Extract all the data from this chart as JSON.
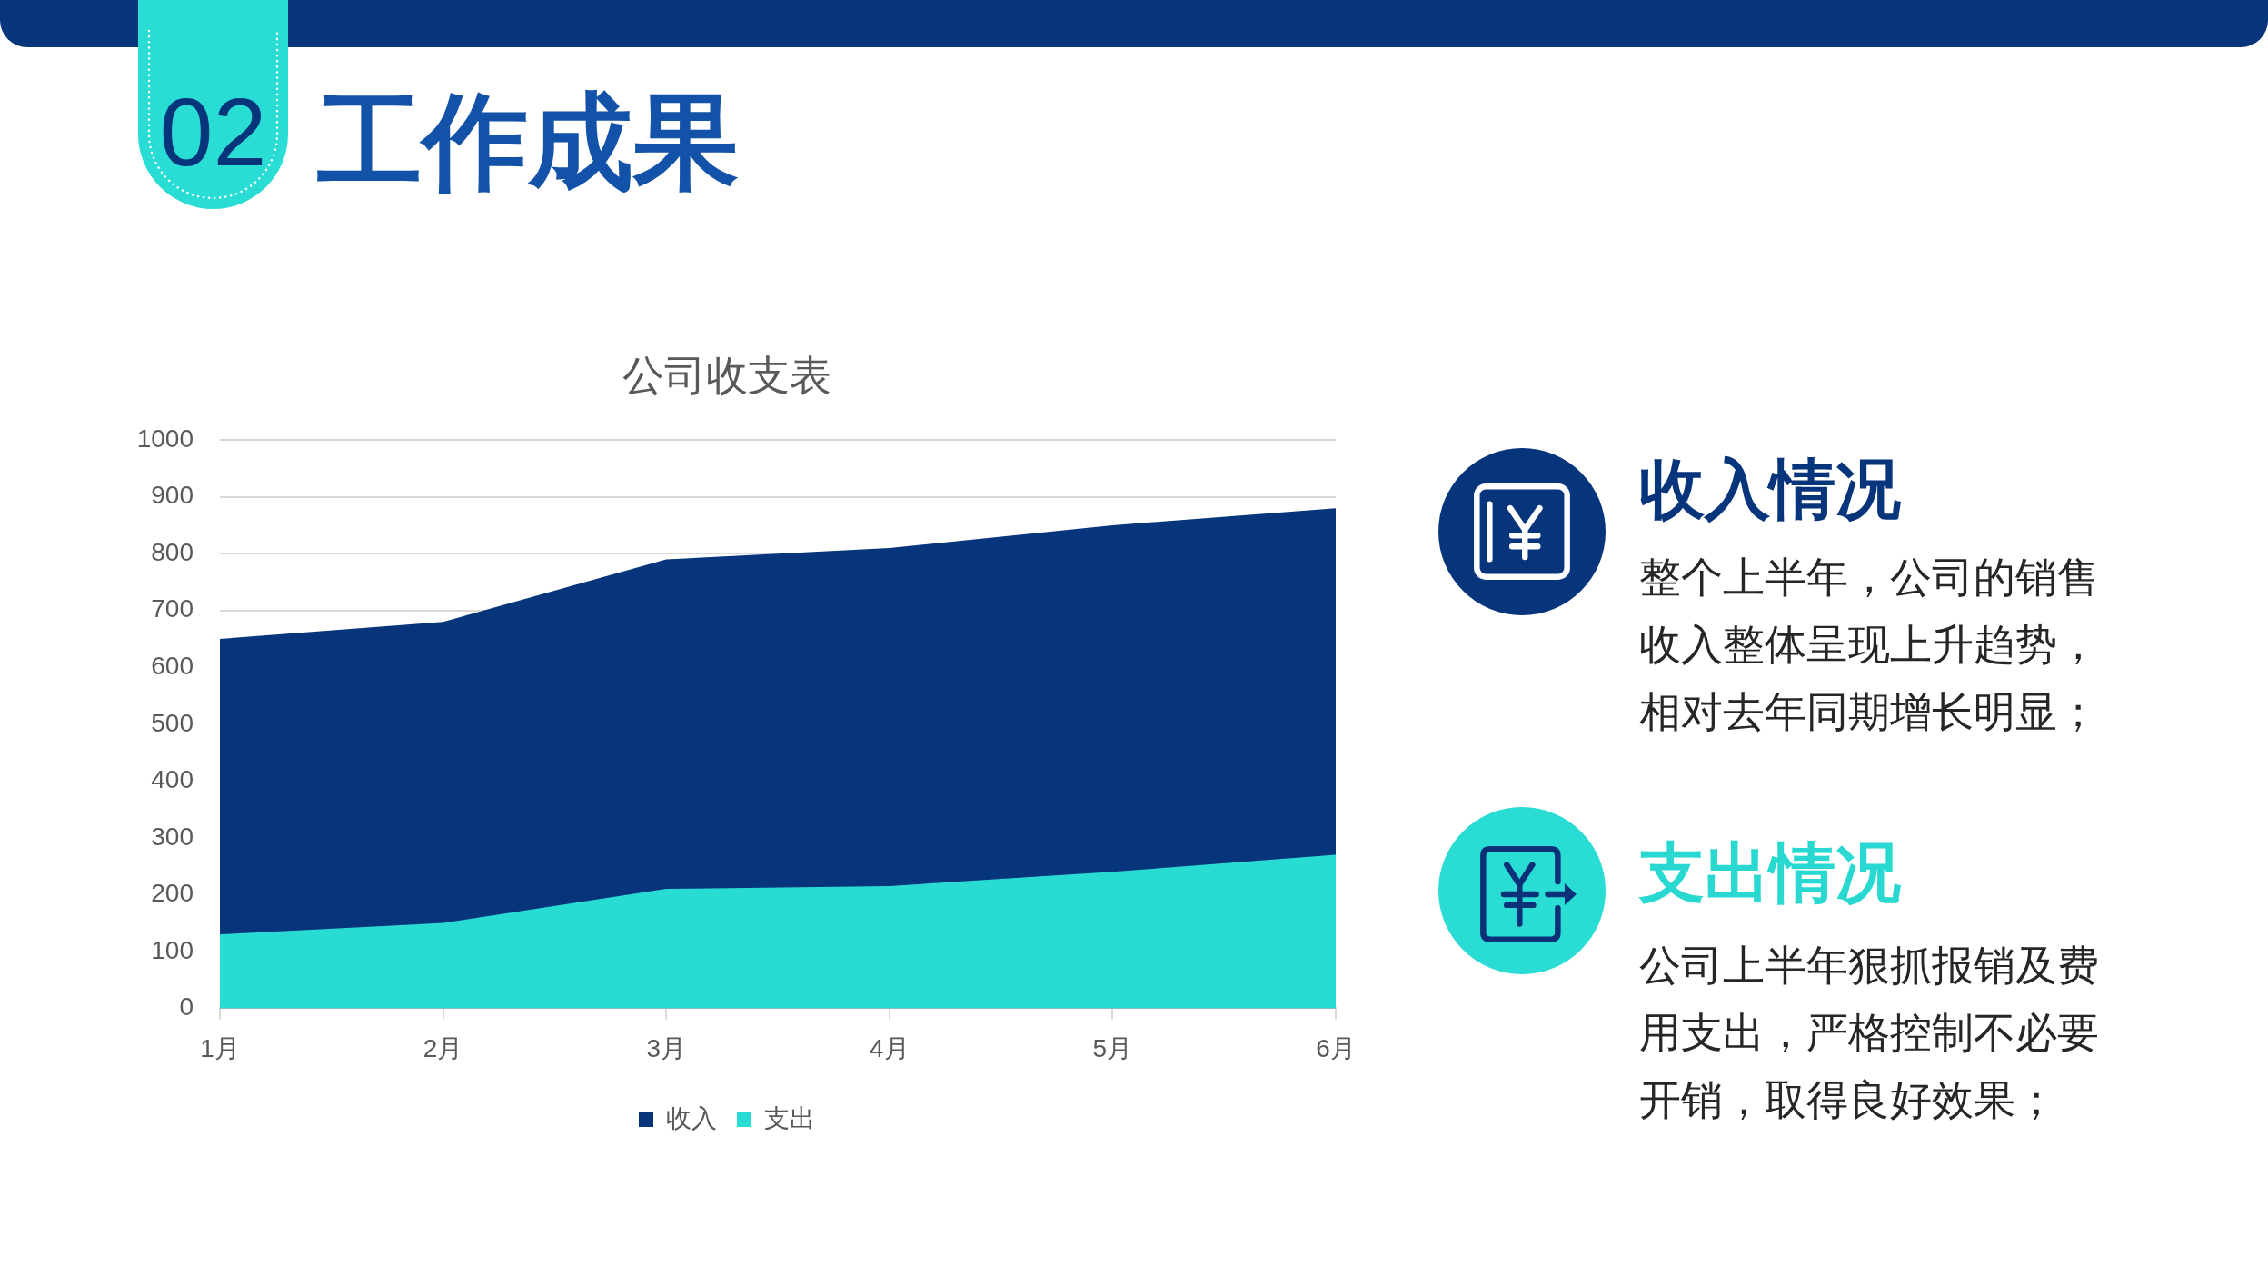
{
  "chart_data": {
    "type": "area",
    "title": "公司收支表",
    "categories": [
      "1月",
      "2月",
      "3月",
      "4月",
      "5月",
      "6月"
    ],
    "series": [
      {
        "name": "收入",
        "color": "#07357c",
        "values": [
          650,
          680,
          790,
          810,
          850,
          880
        ]
      },
      {
        "name": "支出",
        "color": "#28dcd4",
        "values": [
          130,
          150,
          210,
          215,
          240,
          270
        ]
      }
    ],
    "ylim": [
      0,
      1000
    ],
    "yticks": [
      0,
      100,
      200,
      300,
      400,
      500,
      600,
      700,
      800,
      900,
      1000
    ],
    "grid": "y",
    "legend": "bottom",
    "annotations": [
      "02",
      "工作成果",
      "收入情况",
      "整个上半年，公司的销售收入整体呈现上升趋势，相对去年同期增长明显；",
      "支出情况",
      "公司上半年狠抓报销及费用支出，严格控制不必要开销，取得良好效果；"
    ]
  }
}
